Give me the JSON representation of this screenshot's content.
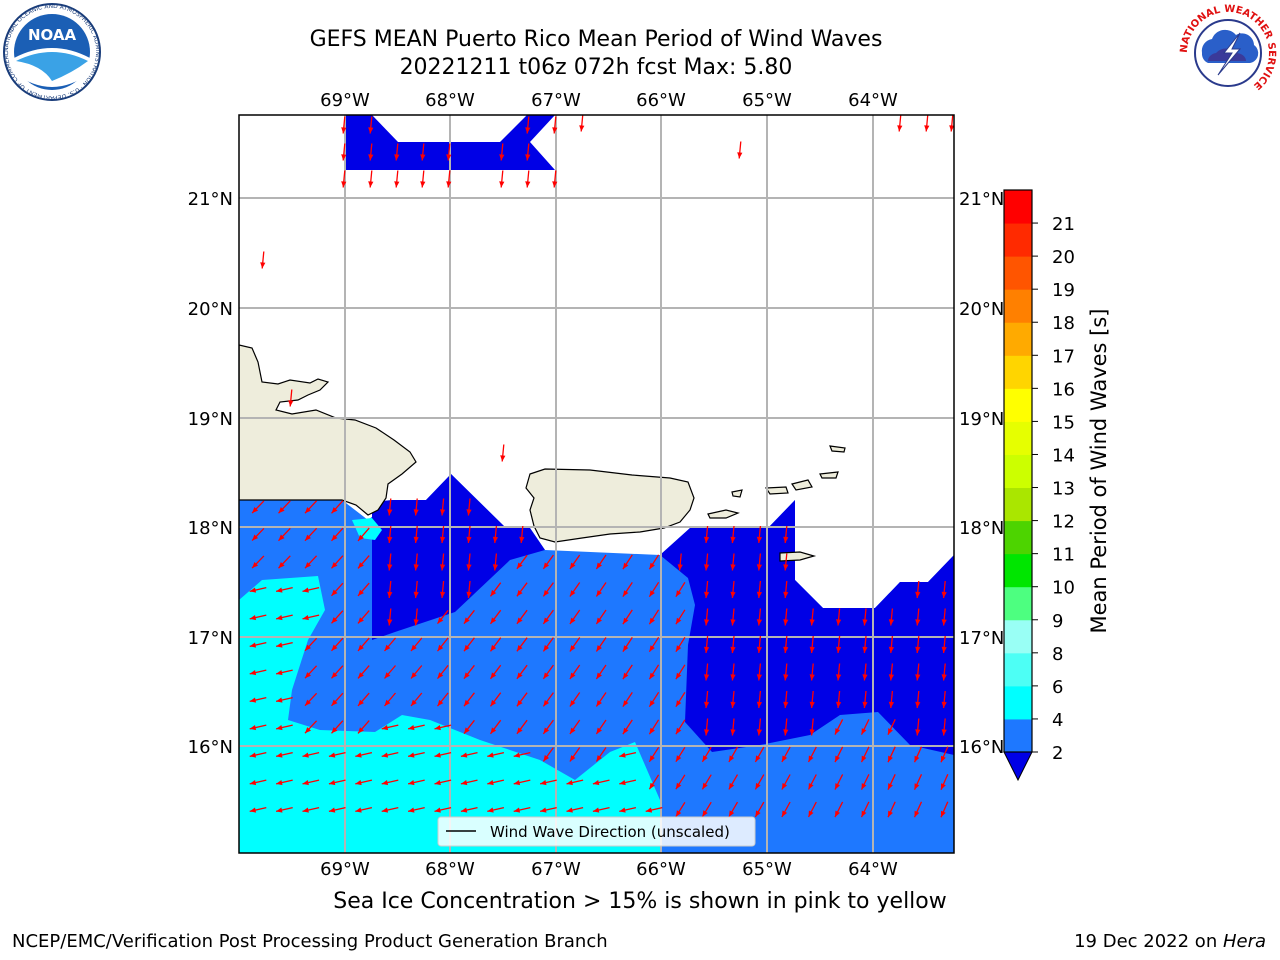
{
  "header": {
    "title_line1": "GEFS MEAN Puerto Rico Mean Period of Wind Waves",
    "title_line2": "20221211 t06z 072h fcst   Max: 5.80"
  },
  "logos": {
    "left": {
      "text": "NOAA",
      "ring_text": "NATIONAL OCEANIC AND ATMOSPHERIC ADMINISTRATION · U.S. DEPARTMENT OF COMMERCE ·"
    },
    "right": {
      "ring_text": "NATIONAL WEATHER SERVICE"
    }
  },
  "map": {
    "lon_labels": [
      "69°W",
      "68°W",
      "67°W",
      "66°W",
      "65°W",
      "64°W"
    ],
    "lat_labels": [
      "21°N",
      "20°N",
      "19°N",
      "18°N",
      "17°N",
      "16°N"
    ],
    "legend_label": "Wind Wave Direction (unscaled)",
    "colors": {
      "land": "#eeeddc",
      "band_2_4": "#1e78ff",
      "band_4_6": "#00ffff",
      "below_2": "#0000e6",
      "arrow": "#ff0000",
      "grid": "#b4b4b4"
    }
  },
  "colorbar": {
    "label": "Mean Period of Wind Waves [s]",
    "ticks": [
      "2",
      "4",
      "6",
      "8",
      "9",
      "10",
      "11",
      "12",
      "13",
      "14",
      "15",
      "16",
      "17",
      "18",
      "19",
      "20",
      "21"
    ],
    "colors": [
      "#1e78ff",
      "#00ffff",
      "#4dfff5",
      "#99fff5",
      "#4dff80",
      "#00e600",
      "#4dd400",
      "#aae600",
      "#ccff00",
      "#e6ff00",
      "#ffff00",
      "#ffd500",
      "#ffaa00",
      "#ff8000",
      "#ff5500",
      "#ff2a00",
      "#ff0000"
    ],
    "under_color": "#0000e6"
  },
  "ice_note": "Sea Ice Concentration > 15% is shown in pink to yellow",
  "footer": {
    "left": "NCEP/EMC/Verification Post Processing Product Generation Branch",
    "right_prefix": "19 Dec 2022 on ",
    "right_italic": "Hera"
  }
}
